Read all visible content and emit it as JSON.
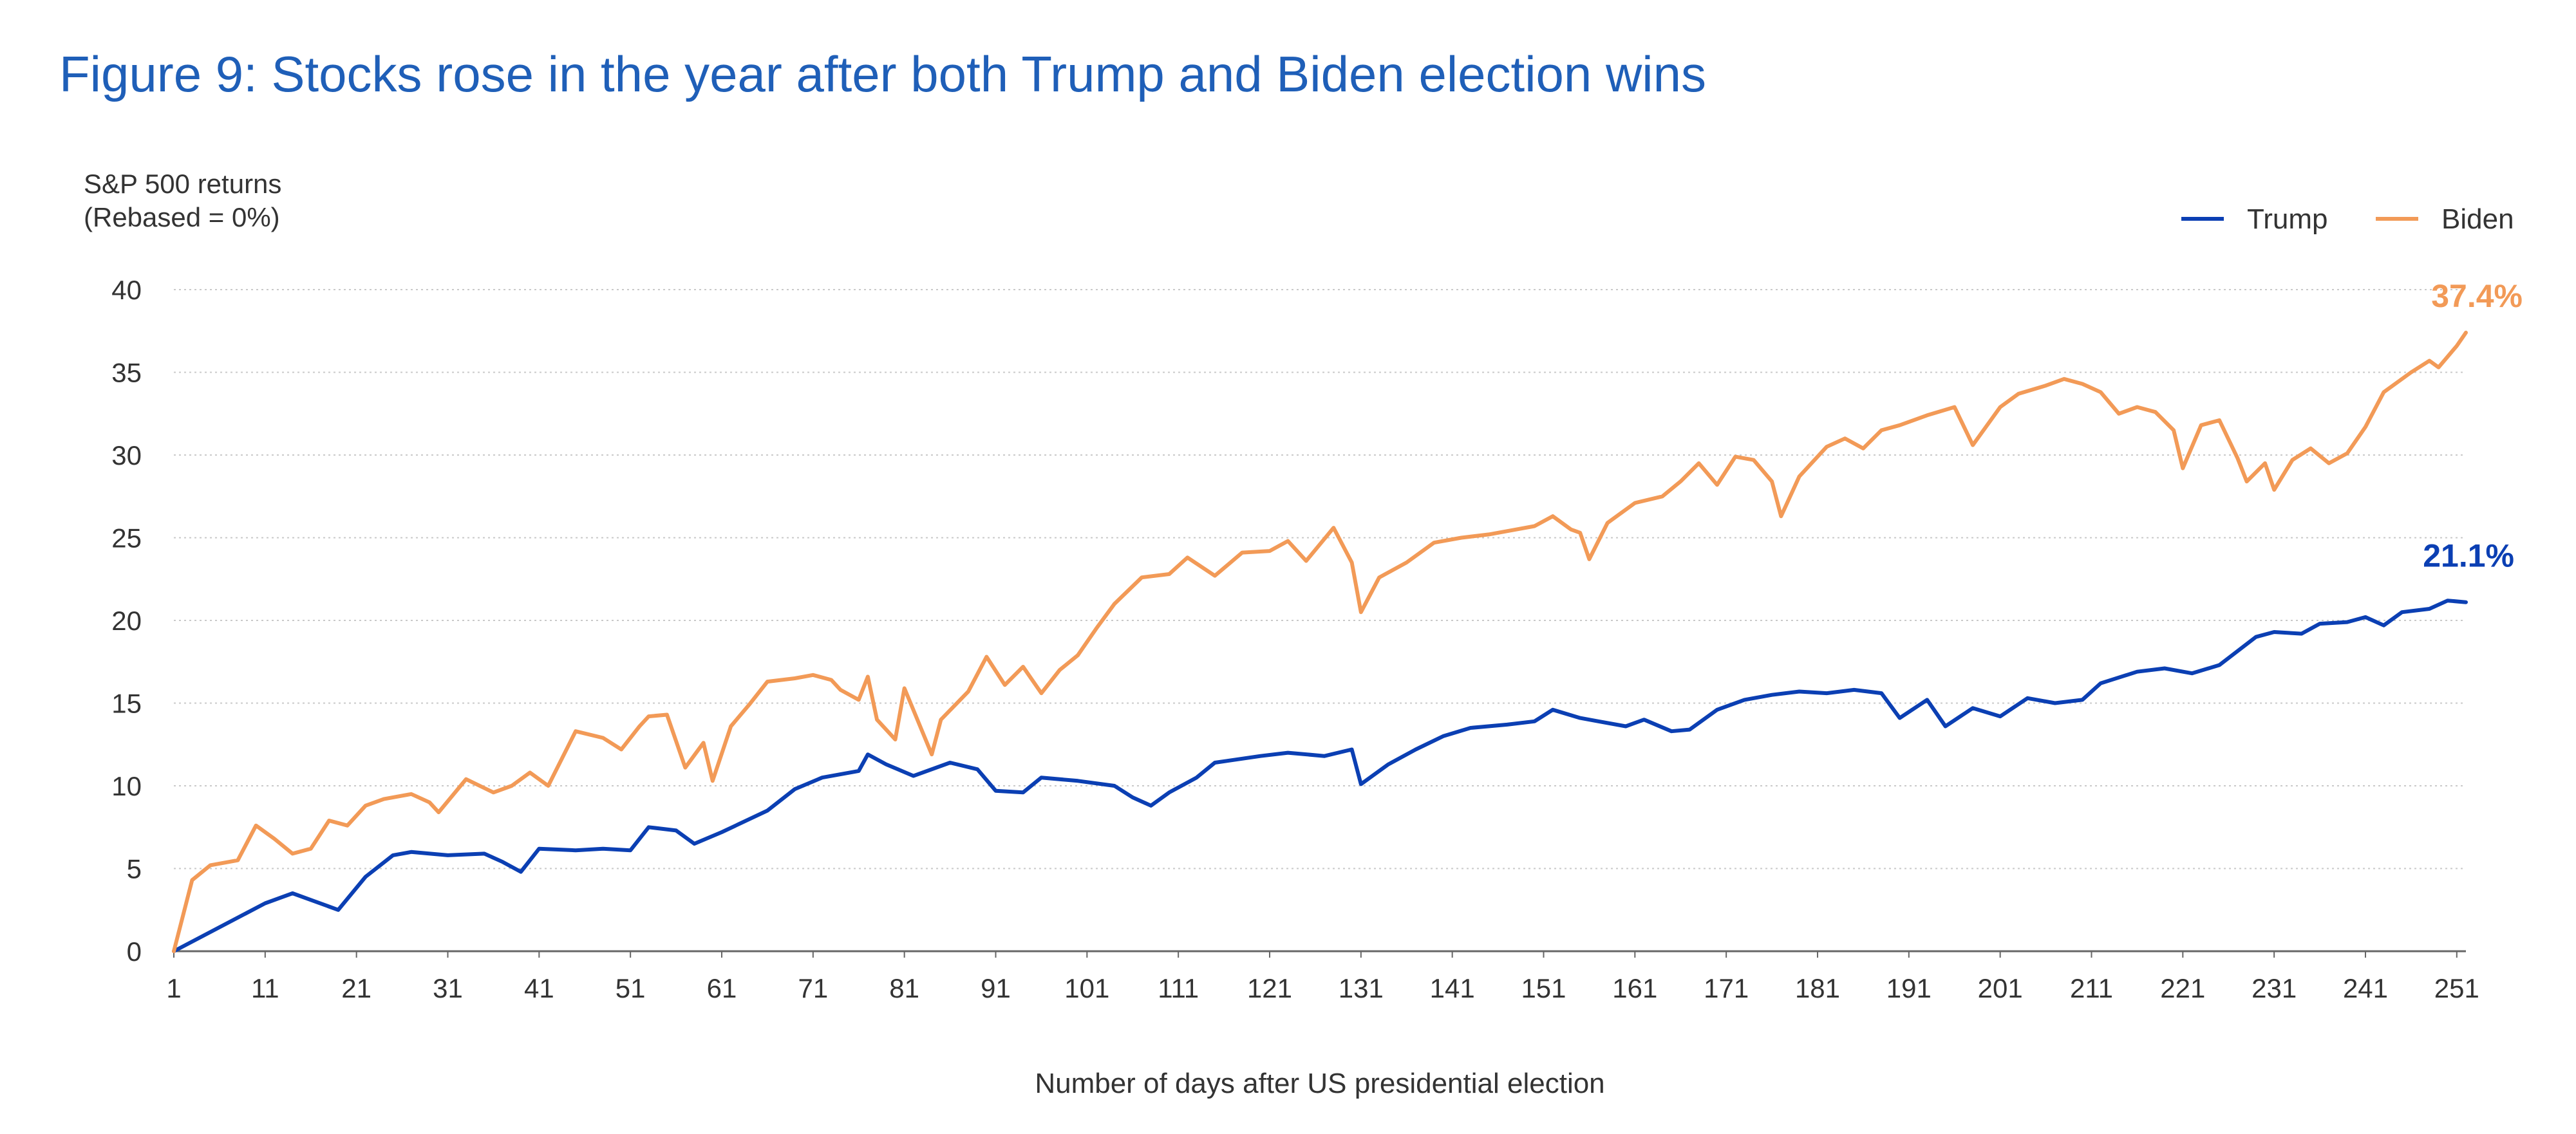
{
  "title": "Figure 9: Stocks rose in the year after both Trump and Biden election wins",
  "colors": {
    "trump": "#0b3fb3",
    "biden": "#f29a57",
    "title": "#1f5fb8",
    "grid": "#c9c9c9",
    "axis": "#666666"
  },
  "chart_data": {
    "type": "line",
    "title": "Figure 9: Stocks rose in the year after both Trump and Biden election wins",
    "ylabel_lines": [
      "S&P 500 returns",
      "(Rebased = 0%)"
    ],
    "xlabel": "Number of days after US presidential election",
    "xlim": [
      1,
      252
    ],
    "ylim": [
      0,
      40
    ],
    "grid": true,
    "legend_position": "top-right",
    "y_ticks": [
      0,
      5,
      10,
      15,
      20,
      25,
      30,
      35,
      40
    ],
    "x_ticks": [
      1,
      11,
      21,
      31,
      41,
      51,
      61,
      71,
      81,
      91,
      101,
      111,
      121,
      131,
      141,
      151,
      161,
      171,
      181,
      191,
      201,
      211,
      221,
      231,
      241,
      251
    ],
    "series": [
      {
        "name": "Trump",
        "color": "#0b3fb3",
        "end_label": "21.1%",
        "points": [
          [
            1,
            0.0
          ],
          [
            11,
            2.9
          ],
          [
            14,
            3.5
          ],
          [
            19,
            2.5
          ],
          [
            22,
            4.5
          ],
          [
            25,
            5.8
          ],
          [
            27,
            6.0
          ],
          [
            31,
            5.8
          ],
          [
            35,
            5.9
          ],
          [
            37,
            5.4
          ],
          [
            39,
            4.8
          ],
          [
            41,
            6.2
          ],
          [
            45,
            6.1
          ],
          [
            48,
            6.2
          ],
          [
            51,
            6.1
          ],
          [
            53,
            7.5
          ],
          [
            56,
            7.3
          ],
          [
            58,
            6.5
          ],
          [
            61,
            7.2
          ],
          [
            66,
            8.5
          ],
          [
            69,
            9.8
          ],
          [
            72,
            10.5
          ],
          [
            76,
            10.9
          ],
          [
            77,
            11.9
          ],
          [
            79,
            11.3
          ],
          [
            82,
            10.6
          ],
          [
            86,
            11.4
          ],
          [
            89,
            11.0
          ],
          [
            91,
            9.7
          ],
          [
            94,
            9.6
          ],
          [
            96,
            10.5
          ],
          [
            100,
            10.3
          ],
          [
            104,
            10.0
          ],
          [
            106,
            9.3
          ],
          [
            108,
            8.8
          ],
          [
            110,
            9.6
          ],
          [
            113,
            10.5
          ],
          [
            115,
            11.4
          ],
          [
            120,
            11.8
          ],
          [
            123,
            12.0
          ],
          [
            127,
            11.8
          ],
          [
            130,
            12.2
          ],
          [
            131,
            10.1
          ],
          [
            134,
            11.3
          ],
          [
            137,
            12.2
          ],
          [
            140,
            13.0
          ],
          [
            143,
            13.5
          ],
          [
            147,
            13.7
          ],
          [
            150,
            13.9
          ],
          [
            152,
            14.6
          ],
          [
            155,
            14.1
          ],
          [
            157,
            13.9
          ],
          [
            160,
            13.6
          ],
          [
            162,
            14.0
          ],
          [
            165,
            13.3
          ],
          [
            167,
            13.4
          ],
          [
            170,
            14.6
          ],
          [
            173,
            15.2
          ],
          [
            176,
            15.5
          ],
          [
            179,
            15.7
          ],
          [
            182,
            15.6
          ],
          [
            185,
            15.8
          ],
          [
            188,
            15.6
          ],
          [
            190,
            14.1
          ],
          [
            193,
            15.2
          ],
          [
            195,
            13.6
          ],
          [
            198,
            14.7
          ],
          [
            201,
            14.2
          ],
          [
            204,
            15.3
          ],
          [
            207,
            15.0
          ],
          [
            210,
            15.2
          ],
          [
            212,
            16.2
          ],
          [
            216,
            16.9
          ],
          [
            219,
            17.1
          ],
          [
            222,
            16.8
          ],
          [
            225,
            17.3
          ],
          [
            229,
            19.0
          ],
          [
            231,
            19.3
          ],
          [
            234,
            19.2
          ],
          [
            236,
            19.8
          ],
          [
            239,
            19.9
          ],
          [
            241,
            20.2
          ],
          [
            243,
            19.7
          ],
          [
            245,
            20.5
          ],
          [
            248,
            20.7
          ],
          [
            250,
            21.2
          ],
          [
            252,
            21.1
          ]
        ]
      },
      {
        "name": "Biden",
        "color": "#f29a57",
        "end_label": "37.4%",
        "points": [
          [
            1,
            0.0
          ],
          [
            3,
            4.3
          ],
          [
            5,
            5.2
          ],
          [
            8,
            5.5
          ],
          [
            10,
            7.6
          ],
          [
            12,
            6.8
          ],
          [
            14,
            5.9
          ],
          [
            16,
            6.2
          ],
          [
            18,
            7.9
          ],
          [
            20,
            7.6
          ],
          [
            22,
            8.8
          ],
          [
            24,
            9.2
          ],
          [
            27,
            9.5
          ],
          [
            29,
            9.0
          ],
          [
            30,
            8.4
          ],
          [
            33,
            10.4
          ],
          [
            36,
            9.6
          ],
          [
            38,
            10.0
          ],
          [
            40,
            10.8
          ],
          [
            42,
            10.0
          ],
          [
            45,
            13.3
          ],
          [
            48,
            12.9
          ],
          [
            50,
            12.2
          ],
          [
            52,
            13.6
          ],
          [
            53,
            14.2
          ],
          [
            55,
            14.3
          ],
          [
            57,
            11.1
          ],
          [
            59,
            12.6
          ],
          [
            60,
            10.3
          ],
          [
            62,
            13.6
          ],
          [
            64,
            14.9
          ],
          [
            66,
            16.3
          ],
          [
            69,
            16.5
          ],
          [
            71,
            16.7
          ],
          [
            73,
            16.4
          ],
          [
            74,
            15.8
          ],
          [
            76,
            15.2
          ],
          [
            77,
            16.6
          ],
          [
            78,
            14.0
          ],
          [
            80,
            12.8
          ],
          [
            81,
            15.9
          ],
          [
            84,
            11.9
          ],
          [
            85,
            14.0
          ],
          [
            88,
            15.7
          ],
          [
            90,
            17.8
          ],
          [
            92,
            16.1
          ],
          [
            94,
            17.2
          ],
          [
            96,
            15.6
          ],
          [
            98,
            17.0
          ],
          [
            100,
            17.9
          ],
          [
            102,
            19.5
          ],
          [
            104,
            21.0
          ],
          [
            107,
            22.6
          ],
          [
            110,
            22.8
          ],
          [
            112,
            23.8
          ],
          [
            115,
            22.7
          ],
          [
            118,
            24.1
          ],
          [
            121,
            24.2
          ],
          [
            123,
            24.8
          ],
          [
            125,
            23.6
          ],
          [
            128,
            25.6
          ],
          [
            130,
            23.5
          ],
          [
            131,
            20.5
          ],
          [
            133,
            22.6
          ],
          [
            136,
            23.5
          ],
          [
            139,
            24.7
          ],
          [
            142,
            25.0
          ],
          [
            145,
            25.2
          ],
          [
            148,
            25.5
          ],
          [
            150,
            25.7
          ],
          [
            152,
            26.3
          ],
          [
            154,
            25.5
          ],
          [
            155,
            25.3
          ],
          [
            156,
            23.7
          ],
          [
            158,
            25.9
          ],
          [
            161,
            27.1
          ],
          [
            164,
            27.5
          ],
          [
            166,
            28.4
          ],
          [
            168,
            29.5
          ],
          [
            170,
            28.2
          ],
          [
            172,
            29.9
          ],
          [
            174,
            29.7
          ],
          [
            176,
            28.4
          ],
          [
            177,
            26.3
          ],
          [
            179,
            28.7
          ],
          [
            182,
            30.5
          ],
          [
            184,
            31.0
          ],
          [
            186,
            30.4
          ],
          [
            188,
            31.5
          ],
          [
            190,
            31.8
          ],
          [
            193,
            32.4
          ],
          [
            196,
            32.9
          ],
          [
            198,
            30.6
          ],
          [
            201,
            32.9
          ],
          [
            203,
            33.7
          ],
          [
            206,
            34.2
          ],
          [
            208,
            34.6
          ],
          [
            210,
            34.3
          ],
          [
            212,
            33.8
          ],
          [
            214,
            32.5
          ],
          [
            216,
            32.9
          ],
          [
            218,
            32.6
          ],
          [
            220,
            31.5
          ],
          [
            221,
            29.2
          ],
          [
            223,
            31.8
          ],
          [
            225,
            32.1
          ],
          [
            227,
            29.8
          ],
          [
            228,
            28.4
          ],
          [
            230,
            29.5
          ],
          [
            231,
            27.9
          ],
          [
            233,
            29.7
          ],
          [
            235,
            30.4
          ],
          [
            237,
            29.5
          ],
          [
            239,
            30.1
          ],
          [
            241,
            31.7
          ],
          [
            243,
            33.8
          ],
          [
            246,
            35.0
          ],
          [
            248,
            35.7
          ],
          [
            249,
            35.3
          ],
          [
            251,
            36.6
          ],
          [
            252,
            37.4
          ]
        ]
      }
    ]
  }
}
